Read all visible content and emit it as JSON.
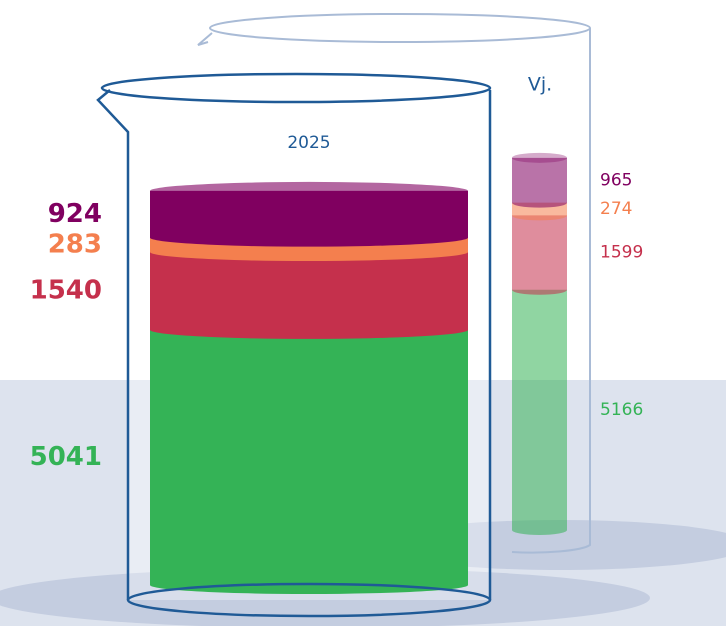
{
  "chart_data": {
    "type": "stacked-cylinder",
    "categories": [
      "2025",
      "Vj."
    ],
    "series": [
      {
        "color": "#34b356",
        "values": [
          5041,
          5166
        ]
      },
      {
        "color": "#c5304c",
        "values": [
          1540,
          1599
        ]
      },
      {
        "color": "#f47f4e",
        "values": [
          283,
          274
        ]
      },
      {
        "color": "#800060",
        "values": [
          924,
          965
        ]
      }
    ]
  }
}
